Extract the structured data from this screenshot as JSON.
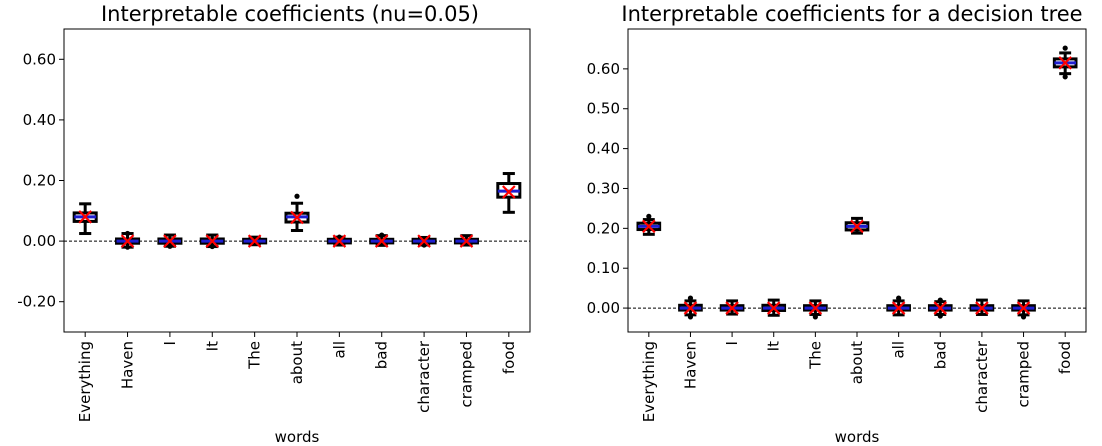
{
  "chart_data": [
    {
      "type": "box",
      "title": "Interpretable coefficients (nu=0.05)",
      "xlabel": "words",
      "ylabel": "",
      "ylim": [
        -0.3,
        0.7
      ],
      "yticks": [
        -0.2,
        0.0,
        0.2,
        0.4,
        0.6
      ],
      "ytick_labels": [
        "-0.20",
        "0.00",
        "0.20",
        "0.40",
        "0.60"
      ],
      "reference_line": 0.0,
      "categories": [
        "Everything",
        "Haven",
        "I",
        "It",
        "The",
        "about",
        "all",
        "bad",
        "character",
        "cramped",
        "food"
      ],
      "boxes": [
        {
          "q1": 0.065,
          "median": 0.08,
          "q3": 0.093,
          "whisker_low": 0.025,
          "whisker_high": 0.123,
          "mean": 0.08,
          "outliers": []
        },
        {
          "q1": -0.007,
          "median": 0.0,
          "q3": 0.007,
          "whisker_low": -0.02,
          "whisker_high": 0.025,
          "mean": 0.0,
          "outliers": [
            -0.02,
            0.025
          ]
        },
        {
          "q1": -0.007,
          "median": 0.0,
          "q3": 0.007,
          "whisker_low": -0.017,
          "whisker_high": 0.02,
          "mean": 0.0,
          "outliers": [
            -0.017
          ]
        },
        {
          "q1": -0.007,
          "median": 0.0,
          "q3": 0.007,
          "whisker_low": -0.018,
          "whisker_high": 0.02,
          "mean": 0.0,
          "outliers": [
            -0.018
          ]
        },
        {
          "q1": -0.006,
          "median": 0.0,
          "q3": 0.006,
          "whisker_low": -0.012,
          "whisker_high": 0.013,
          "mean": 0.0,
          "outliers": []
        },
        {
          "q1": 0.063,
          "median": 0.08,
          "q3": 0.092,
          "whisker_low": 0.035,
          "whisker_high": 0.125,
          "mean": 0.078,
          "outliers": [
            0.148
          ]
        },
        {
          "q1": -0.006,
          "median": 0.0,
          "q3": 0.006,
          "whisker_low": -0.013,
          "whisker_high": 0.013,
          "mean": 0.0,
          "outliers": [
            0.013
          ]
        },
        {
          "q1": -0.006,
          "median": 0.0,
          "q3": 0.006,
          "whisker_low": -0.014,
          "whisker_high": 0.018,
          "mean": 0.0,
          "outliers": [
            0.02
          ]
        },
        {
          "q1": -0.006,
          "median": 0.0,
          "q3": 0.006,
          "whisker_low": -0.013,
          "whisker_high": 0.012,
          "mean": 0.0,
          "outliers": [
            -0.013
          ]
        },
        {
          "q1": -0.006,
          "median": 0.0,
          "q3": 0.006,
          "whisker_low": -0.013,
          "whisker_high": 0.018,
          "mean": 0.0,
          "outliers": []
        },
        {
          "q1": 0.145,
          "median": 0.165,
          "q3": 0.19,
          "whisker_low": 0.095,
          "whisker_high": 0.223,
          "mean": 0.162,
          "outliers": []
        }
      ]
    },
    {
      "type": "box",
      "title": "Interpretable coefficients for a decision tree",
      "xlabel": "words",
      "ylabel": "",
      "ylim": [
        -0.06,
        0.7
      ],
      "yticks": [
        0.0,
        0.1,
        0.2,
        0.3,
        0.4,
        0.5,
        0.6
      ],
      "ytick_labels": [
        "0.00",
        "0.10",
        "0.20",
        "0.30",
        "0.40",
        "0.50",
        "0.60"
      ],
      "reference_line": 0.0,
      "categories": [
        "Everything",
        "Haven",
        "I",
        "It",
        "The",
        "about",
        "all",
        "bad",
        "character",
        "cramped",
        "food"
      ],
      "boxes": [
        {
          "q1": 0.197,
          "median": 0.205,
          "q3": 0.213,
          "whisker_low": 0.185,
          "whisker_high": 0.222,
          "mean": 0.205,
          "outliers": [
            0.23
          ]
        },
        {
          "q1": -0.005,
          "median": 0.0,
          "q3": 0.007,
          "whisker_low": -0.017,
          "whisker_high": 0.018,
          "mean": 0.0,
          "outliers": [
            -0.022,
            0.025
          ]
        },
        {
          "q1": -0.005,
          "median": 0.0,
          "q3": 0.006,
          "whisker_low": -0.015,
          "whisker_high": 0.018,
          "mean": 0.0,
          "outliers": []
        },
        {
          "q1": -0.006,
          "median": 0.0,
          "q3": 0.007,
          "whisker_low": -0.018,
          "whisker_high": 0.02,
          "mean": 0.0,
          "outliers": []
        },
        {
          "q1": -0.005,
          "median": 0.0,
          "q3": 0.006,
          "whisker_low": -0.016,
          "whisker_high": 0.018,
          "mean": 0.0,
          "outliers": [
            -0.022
          ]
        },
        {
          "q1": 0.196,
          "median": 0.205,
          "q3": 0.214,
          "whisker_low": 0.188,
          "whisker_high": 0.225,
          "mean": 0.205,
          "outliers": []
        },
        {
          "q1": -0.005,
          "median": 0.0,
          "q3": 0.006,
          "whisker_low": -0.017,
          "whisker_high": 0.018,
          "mean": 0.0,
          "outliers": [
            0.025
          ]
        },
        {
          "q1": -0.005,
          "median": 0.0,
          "q3": 0.006,
          "whisker_low": -0.016,
          "whisker_high": 0.016,
          "mean": 0.0,
          "outliers": [
            -0.02,
            0.02
          ]
        },
        {
          "q1": -0.005,
          "median": 0.0,
          "q3": 0.006,
          "whisker_low": -0.016,
          "whisker_high": 0.02,
          "mean": 0.0,
          "outliers": []
        },
        {
          "q1": -0.005,
          "median": 0.0,
          "q3": 0.006,
          "whisker_low": -0.017,
          "whisker_high": 0.018,
          "mean": 0.0,
          "outliers": [
            -0.022
          ]
        },
        {
          "q1": 0.605,
          "median": 0.615,
          "q3": 0.625,
          "whisker_low": 0.588,
          "whisker_high": 0.64,
          "mean": 0.615,
          "outliers": [
            0.58,
            0.652
          ]
        }
      ]
    }
  ],
  "style": {
    "box_edge_color": "#000000",
    "box_fill_color": "#ffffff",
    "median_color": "#1f1fd1",
    "mean_marker_color": "#ff0000",
    "mean_marker": "x",
    "reference_line_color": "#000000",
    "reference_line_style": "dashed"
  }
}
